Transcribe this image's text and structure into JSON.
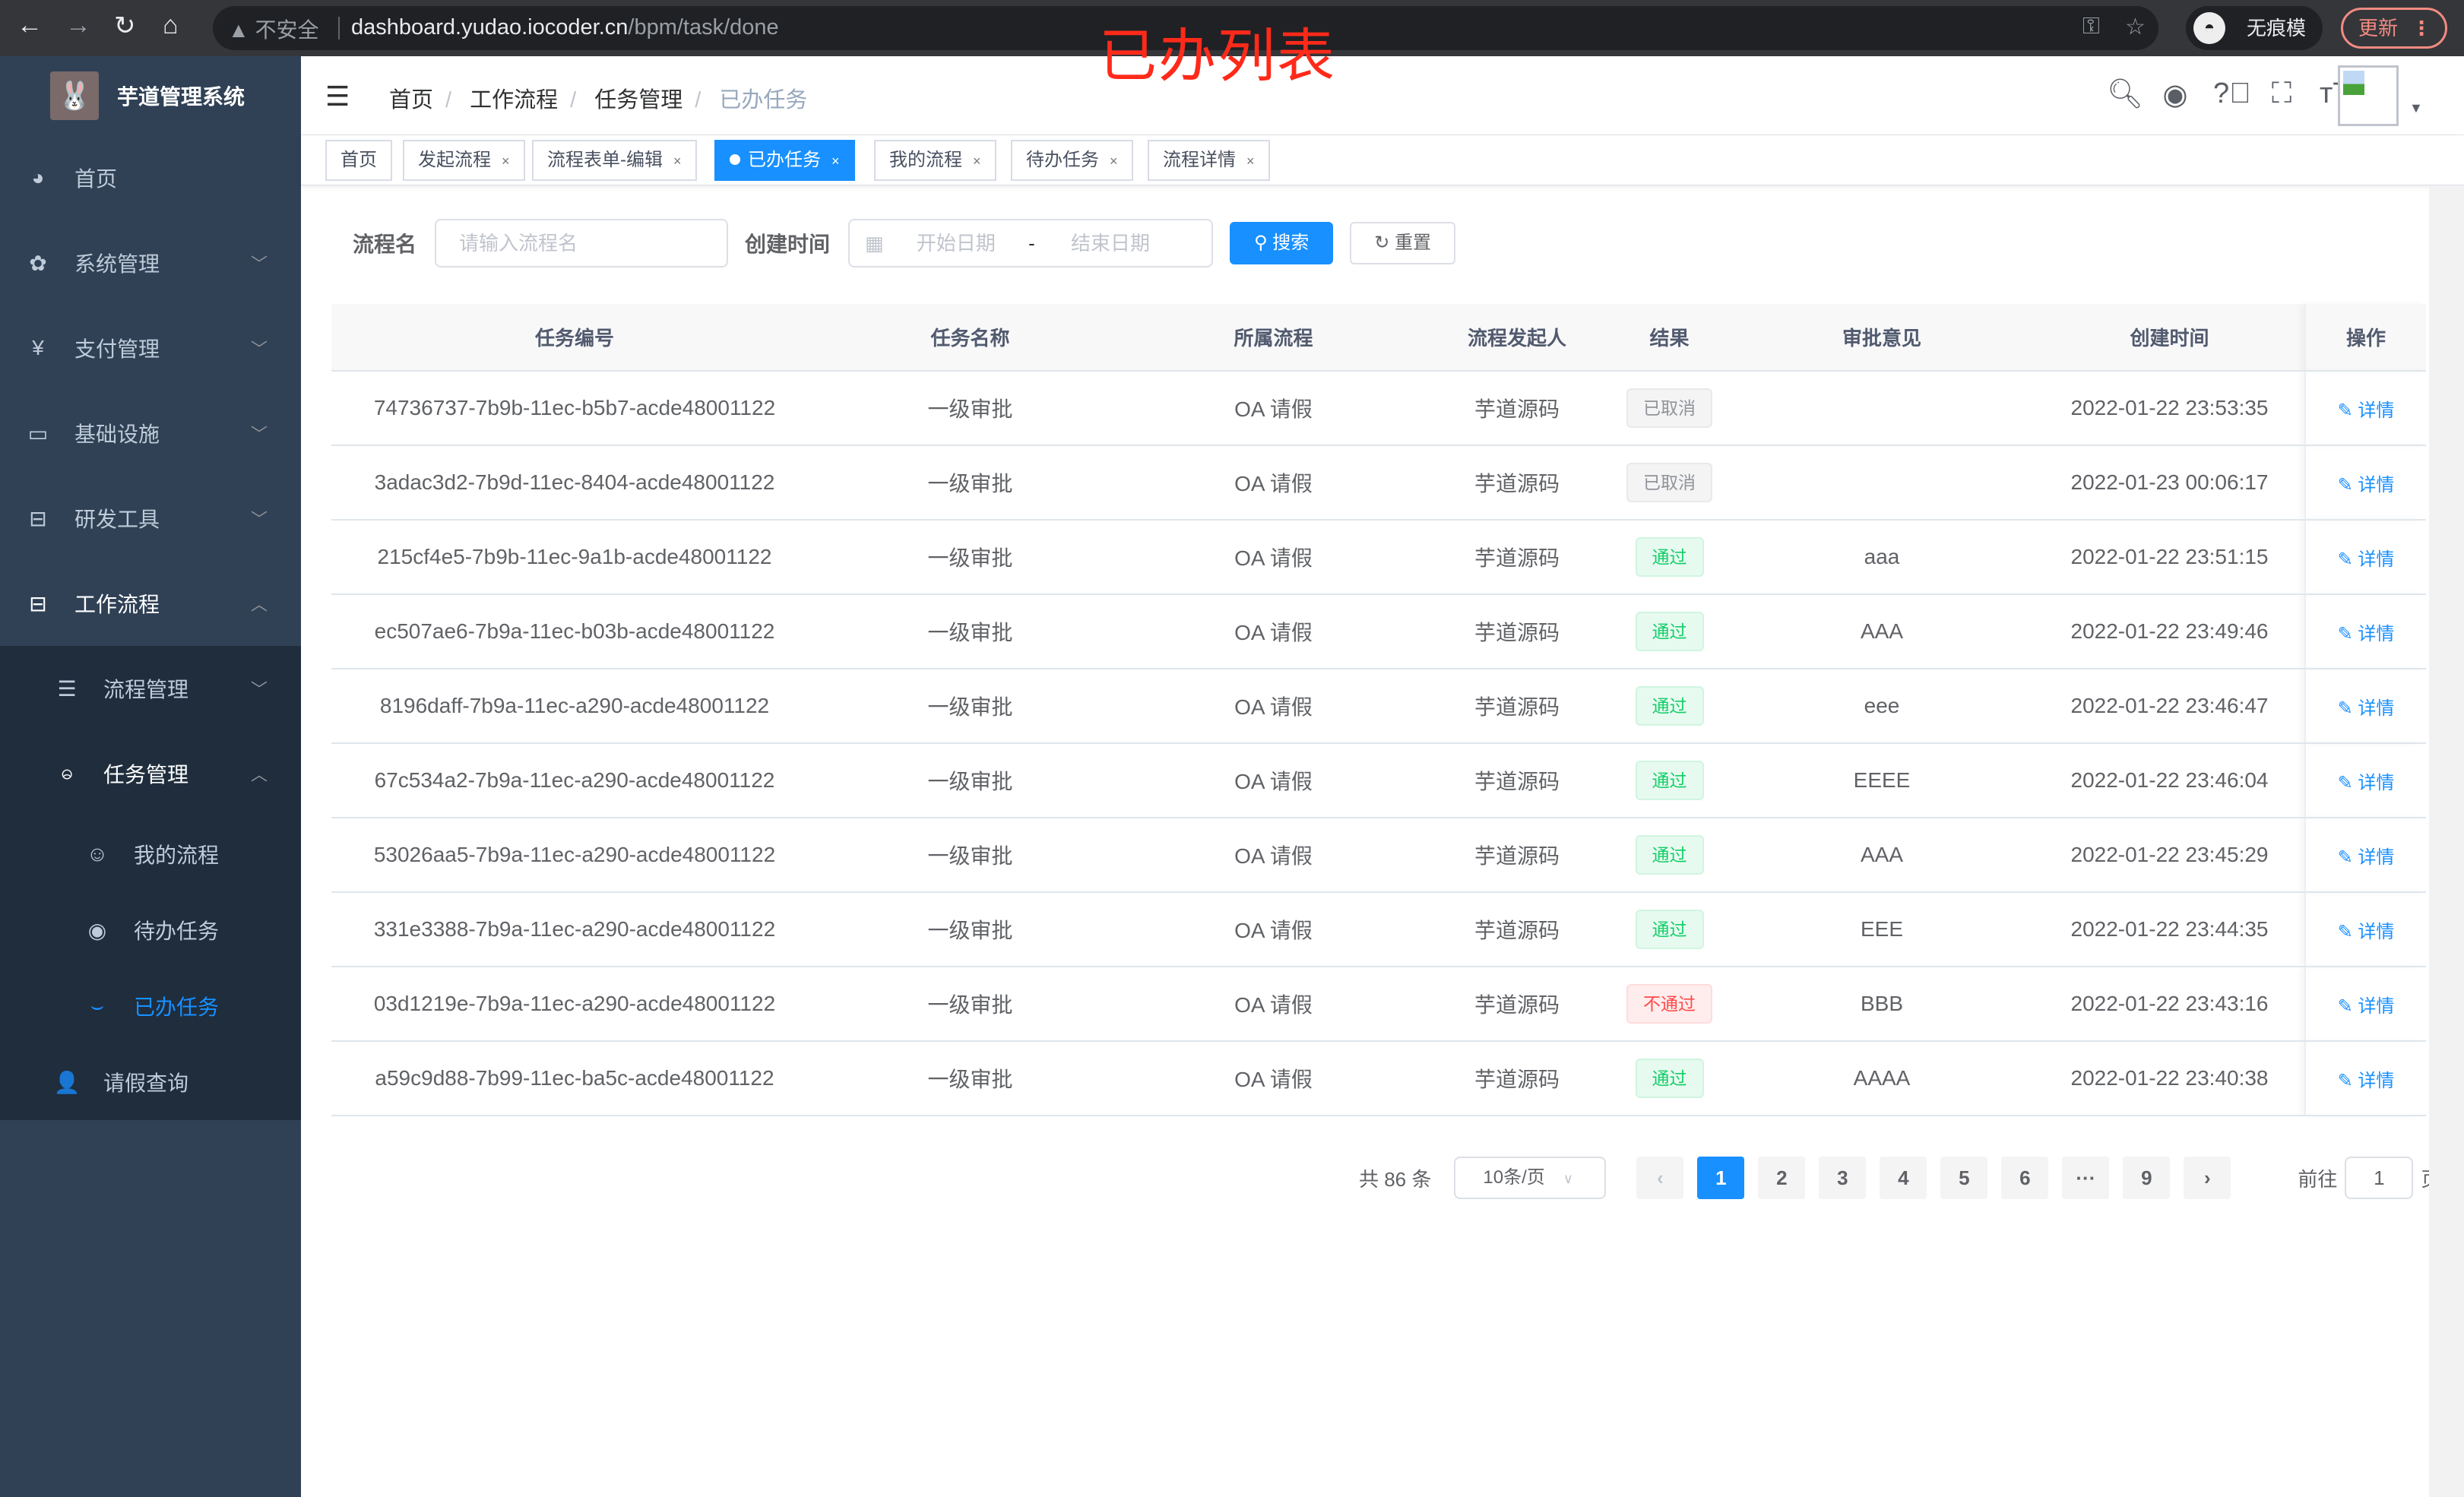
{
  "browser": {
    "security": "不安全",
    "url_host": "dashboard.yudao.iocoder.cn",
    "url_path": "/bpm/task/done",
    "incognito": "无痕模式",
    "update": "更新"
  },
  "annotation_title": "已办列表",
  "app": {
    "title": "芋道管理系统"
  },
  "sidebar": {
    "items": [
      {
        "label": "首页",
        "icon": "dashboard-icon"
      },
      {
        "label": "系统管理",
        "icon": "gear-icon"
      },
      {
        "label": "支付管理",
        "icon": "yen-icon"
      },
      {
        "label": "基础设施",
        "icon": "monitor-icon"
      },
      {
        "label": "研发工具",
        "icon": "toolbox-icon"
      },
      {
        "label": "工作流程",
        "icon": "toolbox-icon"
      }
    ],
    "sub": [
      {
        "label": "流程管理"
      },
      {
        "label": "任务管理"
      }
    ],
    "sub2": [
      {
        "label": "我的流程"
      },
      {
        "label": "待办任务"
      },
      {
        "label": "已办任务"
      }
    ],
    "leave": "请假查询"
  },
  "breadcrumb": [
    "首页",
    "工作流程",
    "任务管理",
    "已办任务"
  ],
  "tags": [
    "首页",
    "发起流程",
    "流程表单-编辑",
    "已办任务",
    "我的流程",
    "待办任务",
    "流程详情"
  ],
  "search": {
    "name_label": "流程名",
    "name_placeholder": "请输入流程名",
    "time_label": "创建时间",
    "start_placeholder": "开始日期",
    "range_sep": "-",
    "end_placeholder": "结束日期",
    "search_btn": "搜索",
    "reset_btn": "重置"
  },
  "table": {
    "headers": [
      "任务编号",
      "任务名称",
      "所属流程",
      "流程发起人",
      "结果",
      "审批意见",
      "创建时间",
      "操作"
    ],
    "action": "详情",
    "rows": [
      [
        "74736737-7b9b-11ec-b5b7-acde48001122",
        "一级审批",
        "OA 请假",
        "芋道源码",
        "已取消",
        "",
        "2022-01-22 23:53:35"
      ],
      [
        "3adac3d2-7b9d-11ec-8404-acde48001122",
        "一级审批",
        "OA 请假",
        "芋道源码",
        "已取消",
        "",
        "2022-01-23 00:06:17"
      ],
      [
        "215cf4e5-7b9b-11ec-9a1b-acde48001122",
        "一级审批",
        "OA 请假",
        "芋道源码",
        "通过",
        "aaa",
        "2022-01-22 23:51:15"
      ],
      [
        "ec507ae6-7b9a-11ec-b03b-acde48001122",
        "一级审批",
        "OA 请假",
        "芋道源码",
        "通过",
        "AAA",
        "2022-01-22 23:49:46"
      ],
      [
        "8196daff-7b9a-11ec-a290-acde48001122",
        "一级审批",
        "OA 请假",
        "芋道源码",
        "通过",
        "eee",
        "2022-01-22 23:46:47"
      ],
      [
        "67c534a2-7b9a-11ec-a290-acde48001122",
        "一级审批",
        "OA 请假",
        "芋道源码",
        "通过",
        "EEEE",
        "2022-01-22 23:46:04"
      ],
      [
        "53026aa5-7b9a-11ec-a290-acde48001122",
        "一级审批",
        "OA 请假",
        "芋道源码",
        "通过",
        "AAA",
        "2022-01-22 23:45:29"
      ],
      [
        "331e3388-7b9a-11ec-a290-acde48001122",
        "一级审批",
        "OA 请假",
        "芋道源码",
        "通过",
        "EEE",
        "2022-01-22 23:44:35"
      ],
      [
        "03d1219e-7b9a-11ec-a290-acde48001122",
        "一级审批",
        "OA 请假",
        "芋道源码",
        "不通过",
        "BBB",
        "2022-01-22 23:43:16"
      ],
      [
        "a59c9d88-7b99-11ec-ba5c-acde48001122",
        "一级审批",
        "OA 请假",
        "芋道源码",
        "通过",
        "AAAA",
        "2022-01-22 23:40:38"
      ]
    ]
  },
  "result_colors": {
    "已取消": "#909399",
    "通过": "#13ce66",
    "不通过": "#ff4949"
  },
  "pagination": {
    "total": "共 86 条",
    "page_size": "10条/页",
    "pages": [
      "1",
      "2",
      "3",
      "4",
      "5",
      "6",
      "···",
      "9"
    ],
    "current": "1",
    "goto_label": "前往",
    "goto_value": "1",
    "goto_suffix": "页"
  },
  "colors": {
    "primary": "#1890ff",
    "sidebar": "#304156",
    "submenu": "#1f2d3d"
  }
}
